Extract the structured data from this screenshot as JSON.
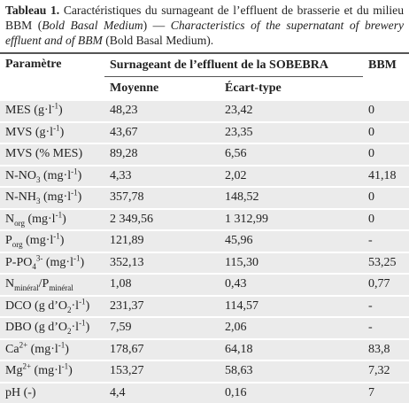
{
  "caption": {
    "label": "Tableau 1.",
    "parts": [
      "Caractéristiques du surnageant de l’effluent de brasserie et du milieu BBM (",
      "Bold Basal Medium",
      ") — ",
      "Characteristics of the supernatant of brewery effluent and of  BBM",
      " (Bold Basal Medium)."
    ]
  },
  "table": {
    "header": {
      "param": "Paramètre",
      "group": "Surnageant de l’effluent de la SOBEBRA",
      "bbm": "BBM",
      "mean": "Moyenne",
      "sd": "Écart-type"
    },
    "rows": [
      {
        "param": [
          "MES (g·l",
          "-1",
          ")"
        ],
        "mean": "48,23",
        "sd": "23,42",
        "bbm": "0"
      },
      {
        "param": [
          "MVS (g·l",
          "-1",
          ")"
        ],
        "mean": "43,67",
        "sd": "23,35",
        "bbm": "0"
      },
      {
        "param": [
          "MVS (% MES)"
        ],
        "mean": "89,28",
        "sd": "6,56",
        "bbm": "0"
      },
      {
        "param": [
          "N-NO",
          "3",
          " (mg·l",
          "-1",
          ")"
        ],
        "mean": "4,33",
        "sd": "2,02",
        "bbm": "41,18"
      },
      {
        "param": [
          "N-NH",
          "3",
          " (mg·l",
          "-1",
          ")"
        ],
        "mean": "357,78",
        "sd": "148,52",
        "bbm": "0"
      },
      {
        "param": [
          "N",
          "org",
          " (mg·l",
          "-1",
          ")"
        ],
        "mean": "2 349,56",
        "sd": "1 312,99",
        "bbm": "0"
      },
      {
        "param": [
          "P",
          "org",
          " (mg·l",
          "-1",
          ")"
        ],
        "mean": "121,89",
        "sd": "45,96",
        "bbm": "-"
      },
      {
        "param": [
          "P-PO",
          "4",
          "3-",
          " (mg·l",
          "-1",
          ")"
        ],
        "mean": "352,13",
        "sd": "115,30",
        "bbm": "53,25"
      },
      {
        "param": [
          "N",
          "minéral",
          "/P",
          "minéral"
        ],
        "mean": "1,08",
        "sd": "0,43",
        "bbm": "0,77"
      },
      {
        "param": [
          "DCO (g d’O",
          "2",
          "·l",
          "-1",
          ")"
        ],
        "mean": "231,37",
        "sd": "114,57",
        "bbm": "-"
      },
      {
        "param": [
          "DBO (g d’O",
          "2",
          "·l",
          "-1",
          ")"
        ],
        "mean": "7,59",
        "sd": "2,06",
        "bbm": "-"
      },
      {
        "param": [
          "Ca",
          "2+",
          " (mg·l",
          "-1",
          ")"
        ],
        "mean": "178,67",
        "sd": "64,18",
        "bbm": "83,8"
      },
      {
        "param": [
          "Mg",
          "2+",
          " (mg·l",
          "-1",
          ")"
        ],
        "mean": "153,27",
        "sd": "58,63",
        "bbm": "7,32"
      },
      {
        "param": [
          "pH (-)"
        ],
        "mean": "4,4",
        "sd": "0,16",
        "bbm": "7"
      }
    ]
  }
}
